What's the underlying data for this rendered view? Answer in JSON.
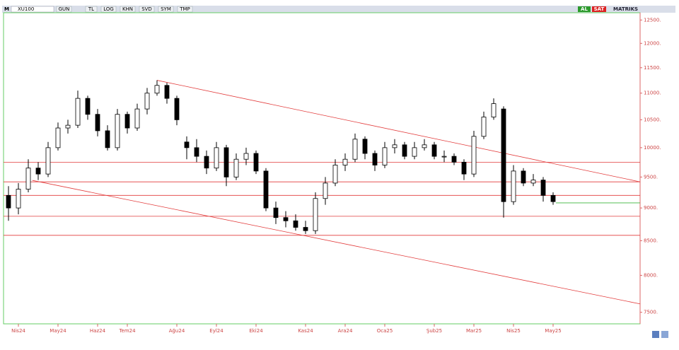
{
  "toolbar": {
    "menu": "M",
    "symbol": "XU100",
    "buttons": [
      "GUN",
      "TL",
      "LOG",
      "KHN",
      "SVD",
      "SYM",
      "TMP"
    ],
    "buy": "AL",
    "sell": "SAT",
    "brand": "MATRIKS"
  },
  "chart_data": {
    "type": "candlestick",
    "log_scale": true,
    "categories": [
      null,
      "Nis24",
      null,
      null,
      null,
      "May24",
      null,
      null,
      null,
      "Haz24",
      null,
      null,
      "Tem24",
      null,
      null,
      null,
      null,
      "Ağu24",
      null,
      null,
      null,
      "Eyl24",
      null,
      null,
      null,
      "Eki24",
      null,
      null,
      null,
      null,
      "Kas24",
      null,
      null,
      null,
      "Ara24",
      null,
      null,
      null,
      "Oca25",
      null,
      null,
      null,
      null,
      "Şub25",
      null,
      null,
      null,
      "Mar25",
      null,
      null,
      null,
      "Nis25",
      null,
      null,
      null,
      "May25"
    ],
    "open": [
      9200,
      9000,
      9300,
      9650,
      9550,
      10000,
      10350,
      10400,
      10900,
      10600,
      10300,
      10000,
      10600,
      10350,
      10700,
      11000,
      11150,
      10900,
      10100,
      10000,
      9850,
      9650,
      10000,
      9500,
      9800,
      9900,
      9600,
      9000,
      8850,
      8800,
      8700,
      8650,
      9150,
      9400,
      9700,
      9800,
      10150,
      9900,
      9700,
      10000,
      10050,
      9850,
      10000,
      10050,
      9850,
      9850,
      9750,
      9550,
      10200,
      10550,
      10700,
      9100,
      9600,
      9400,
      9450,
      9200
    ],
    "high": [
      9350,
      9400,
      9800,
      9750,
      10100,
      10450,
      10500,
      11050,
      10950,
      10700,
      10400,
      10700,
      10650,
      10800,
      11100,
      11250,
      11200,
      10950,
      10200,
      10150,
      9950,
      10100,
      10050,
      9900,
      10000,
      9950,
      9650,
      9100,
      8950,
      8900,
      8800,
      9250,
      9500,
      9800,
      9900,
      10250,
      10200,
      9950,
      10100,
      10150,
      10100,
      10100,
      10150,
      10100,
      9950,
      9900,
      9800,
      10300,
      10650,
      10900,
      10750,
      9700,
      9650,
      9550,
      9500,
      9250
    ],
    "low": [
      8800,
      8900,
      9250,
      9450,
      9500,
      9950,
      10250,
      10350,
      10500,
      10200,
      9950,
      9950,
      10250,
      10300,
      10600,
      10950,
      10800,
      10400,
      9800,
      9750,
      9550,
      9600,
      9350,
      9450,
      9700,
      9550,
      8950,
      8750,
      8700,
      8650,
      8600,
      8600,
      9050,
      9350,
      9600,
      9750,
      9800,
      9600,
      9650,
      9900,
      9800,
      9800,
      9950,
      9800,
      9750,
      9700,
      9450,
      9500,
      10150,
      10500,
      8850,
      9050,
      9350,
      9350,
      9100,
      9050
    ],
    "close": [
      9000,
      9300,
      9650,
      9550,
      10000,
      10350,
      10400,
      10900,
      10600,
      10300,
      10000,
      10600,
      10350,
      10700,
      11000,
      11150,
      10900,
      10500,
      10000,
      9850,
      9650,
      10000,
      9500,
      9800,
      9900,
      9600,
      9000,
      8850,
      8800,
      8700,
      8650,
      9150,
      9400,
      9700,
      9800,
      10150,
      9900,
      9700,
      10000,
      10050,
      9850,
      10000,
      10050,
      9850,
      9850,
      9750,
      9550,
      10200,
      10550,
      10800,
      9100,
      9600,
      9400,
      9450,
      9200,
      9100
    ],
    "up_color": "#ffffff",
    "down_color": "#000000",
    "levels": [
      9750,
      9420,
      9200,
      8870,
      8580
    ],
    "level_color": "#e23b3b",
    "trendlines": [
      {
        "points": [
          [
            15,
            11250
          ],
          [
            63.8,
            9420
          ]
        ]
      },
      {
        "points": [
          [
            2.4,
            9445
          ],
          [
            63.8,
            7610
          ]
        ]
      }
    ],
    "last_line": 9080,
    "last_color": "#3cb43c",
    "ylim": [
      7350,
      12660
    ],
    "yticks": [
      {
        "value": 12500,
        "label": "12500."
      },
      {
        "value": 12000,
        "label": "12000."
      },
      {
        "value": 11500,
        "label": "11500."
      },
      {
        "value": 11000,
        "label": "11000."
      },
      {
        "value": 10500,
        "label": "10500."
      },
      {
        "value": 10000,
        "label": "10000."
      },
      {
        "value": 9500,
        "label": "9500."
      },
      {
        "value": 9000,
        "label": "9000."
      },
      {
        "value": 8500,
        "label": "8500."
      },
      {
        "value": 8000,
        "label": "8000."
      },
      {
        "value": 7500,
        "label": "7500."
      }
    ]
  }
}
